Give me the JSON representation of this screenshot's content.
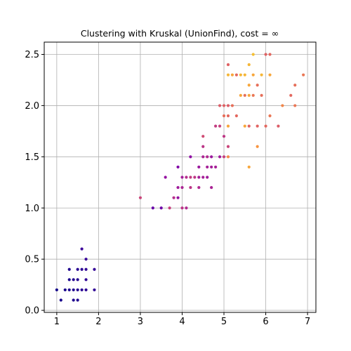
{
  "chart_data": {
    "type": "scatter",
    "title": "Clustering with Kruskal (UnionFind), cost = ∞",
    "xlabel": "",
    "ylabel": "",
    "xlim": [
      0.7,
      7.2
    ],
    "ylim": [
      -0.02,
      2.62
    ],
    "xticks": [
      1,
      2,
      3,
      4,
      5,
      6,
      7
    ],
    "yticks": [
      0.0,
      0.5,
      1.0,
      1.5,
      2.0,
      2.5
    ],
    "ytick_labels": [
      "0.0",
      "0.5",
      "1.0",
      "1.5",
      "2.0",
      "2.5"
    ],
    "grid": true,
    "colormap": "plasma",
    "points": [
      {
        "x": 1.0,
        "y": 0.2,
        "c": 0.02
      },
      {
        "x": 1.1,
        "y": 0.1,
        "c": 0.03
      },
      {
        "x": 1.2,
        "y": 0.2,
        "c": 0.03
      },
      {
        "x": 1.3,
        "y": 0.2,
        "c": 0.04
      },
      {
        "x": 1.3,
        "y": 0.3,
        "c": 0.04
      },
      {
        "x": 1.3,
        "y": 0.4,
        "c": 0.05
      },
      {
        "x": 1.4,
        "y": 0.1,
        "c": 0.05
      },
      {
        "x": 1.4,
        "y": 0.2,
        "c": 0.05
      },
      {
        "x": 1.4,
        "y": 0.3,
        "c": 0.06
      },
      {
        "x": 1.5,
        "y": 0.1,
        "c": 0.05
      },
      {
        "x": 1.5,
        "y": 0.2,
        "c": 0.06
      },
      {
        "x": 1.5,
        "y": 0.3,
        "c": 0.06
      },
      {
        "x": 1.5,
        "y": 0.4,
        "c": 0.07
      },
      {
        "x": 1.6,
        "y": 0.2,
        "c": 0.07
      },
      {
        "x": 1.6,
        "y": 0.4,
        "c": 0.08
      },
      {
        "x": 1.6,
        "y": 0.6,
        "c": 0.12
      },
      {
        "x": 1.7,
        "y": 0.2,
        "c": 0.08
      },
      {
        "x": 1.7,
        "y": 0.3,
        "c": 0.09
      },
      {
        "x": 1.7,
        "y": 0.4,
        "c": 0.09
      },
      {
        "x": 1.7,
        "y": 0.5,
        "c": 0.11
      },
      {
        "x": 1.9,
        "y": 0.2,
        "c": 0.09
      },
      {
        "x": 1.9,
        "y": 0.4,
        "c": 0.1
      },
      {
        "x": 3.0,
        "y": 1.1,
        "c": 0.62
      },
      {
        "x": 3.3,
        "y": 1.0,
        "c": 0.24
      },
      {
        "x": 3.5,
        "y": 1.0,
        "c": 0.26
      },
      {
        "x": 3.6,
        "y": 1.3,
        "c": 0.4
      },
      {
        "x": 3.7,
        "y": 1.0,
        "c": 0.6
      },
      {
        "x": 3.8,
        "y": 1.1,
        "c": 0.52
      },
      {
        "x": 3.9,
        "y": 1.1,
        "c": 0.4
      },
      {
        "x": 3.9,
        "y": 1.2,
        "c": 0.44
      },
      {
        "x": 3.9,
        "y": 1.4,
        "c": 0.33
      },
      {
        "x": 4.0,
        "y": 1.0,
        "c": 0.55
      },
      {
        "x": 4.0,
        "y": 1.2,
        "c": 0.48
      },
      {
        "x": 4.0,
        "y": 1.3,
        "c": 0.45
      },
      {
        "x": 4.1,
        "y": 1.0,
        "c": 0.5
      },
      {
        "x": 4.1,
        "y": 1.3,
        "c": 0.52
      },
      {
        "x": 4.2,
        "y": 1.2,
        "c": 0.55
      },
      {
        "x": 4.2,
        "y": 1.3,
        "c": 0.58
      },
      {
        "x": 4.2,
        "y": 1.5,
        "c": 0.38
      },
      {
        "x": 4.3,
        "y": 1.3,
        "c": 0.56
      },
      {
        "x": 4.4,
        "y": 1.2,
        "c": 0.5
      },
      {
        "x": 4.4,
        "y": 1.3,
        "c": 0.45
      },
      {
        "x": 4.4,
        "y": 1.4,
        "c": 0.42
      },
      {
        "x": 4.5,
        "y": 1.3,
        "c": 0.46
      },
      {
        "x": 4.5,
        "y": 1.5,
        "c": 0.48
      },
      {
        "x": 4.5,
        "y": 1.6,
        "c": 0.55
      },
      {
        "x": 4.5,
        "y": 1.7,
        "c": 0.65
      },
      {
        "x": 4.6,
        "y": 1.3,
        "c": 0.44
      },
      {
        "x": 4.6,
        "y": 1.4,
        "c": 0.46
      },
      {
        "x": 4.6,
        "y": 1.5,
        "c": 0.5
      },
      {
        "x": 4.7,
        "y": 1.2,
        "c": 0.47
      },
      {
        "x": 4.7,
        "y": 1.4,
        "c": 0.45
      },
      {
        "x": 4.7,
        "y": 1.5,
        "c": 0.42
      },
      {
        "x": 4.8,
        "y": 1.4,
        "c": 0.46
      },
      {
        "x": 4.8,
        "y": 1.8,
        "c": 0.58
      },
      {
        "x": 4.9,
        "y": 1.5,
        "c": 0.44
      },
      {
        "x": 4.9,
        "y": 1.8,
        "c": 0.6
      },
      {
        "x": 4.9,
        "y": 2.0,
        "c": 0.72
      },
      {
        "x": 5.0,
        "y": 1.5,
        "c": 0.6
      },
      {
        "x": 5.0,
        "y": 1.7,
        "c": 0.56
      },
      {
        "x": 5.0,
        "y": 1.9,
        "c": 0.78
      },
      {
        "x": 5.0,
        "y": 2.0,
        "c": 0.74
      },
      {
        "x": 5.1,
        "y": 1.5,
        "c": 0.85
      },
      {
        "x": 5.1,
        "y": 1.6,
        "c": 0.62
      },
      {
        "x": 5.1,
        "y": 1.8,
        "c": 0.9
      },
      {
        "x": 5.1,
        "y": 1.9,
        "c": 0.76
      },
      {
        "x": 5.1,
        "y": 2.0,
        "c": 0.72
      },
      {
        "x": 5.1,
        "y": 2.3,
        "c": 0.92
      },
      {
        "x": 5.1,
        "y": 2.4,
        "c": 0.74
      },
      {
        "x": 5.2,
        "y": 2.0,
        "c": 0.78
      },
      {
        "x": 5.2,
        "y": 2.3,
        "c": 0.9
      },
      {
        "x": 5.3,
        "y": 1.9,
        "c": 0.76
      },
      {
        "x": 5.3,
        "y": 2.3,
        "c": 0.76
      },
      {
        "x": 5.4,
        "y": 2.1,
        "c": 0.9
      },
      {
        "x": 5.4,
        "y": 2.3,
        "c": 0.92
      },
      {
        "x": 5.5,
        "y": 1.8,
        "c": 0.9
      },
      {
        "x": 5.5,
        "y": 2.1,
        "c": 0.78
      },
      {
        "x": 5.5,
        "y": 2.3,
        "c": 0.92
      },
      {
        "x": 5.6,
        "y": 1.4,
        "c": 0.9
      },
      {
        "x": 5.6,
        "y": 1.8,
        "c": 0.75
      },
      {
        "x": 5.6,
        "y": 2.1,
        "c": 0.9
      },
      {
        "x": 5.6,
        "y": 2.2,
        "c": 0.9
      },
      {
        "x": 5.6,
        "y": 2.4,
        "c": 0.92
      },
      {
        "x": 5.7,
        "y": 2.1,
        "c": 0.8
      },
      {
        "x": 5.7,
        "y": 2.3,
        "c": 0.9
      },
      {
        "x": 5.7,
        "y": 2.5,
        "c": 0.93
      },
      {
        "x": 5.8,
        "y": 1.6,
        "c": 0.88
      },
      {
        "x": 5.8,
        "y": 1.8,
        "c": 0.75
      },
      {
        "x": 5.8,
        "y": 2.2,
        "c": 0.78
      },
      {
        "x": 5.9,
        "y": 2.1,
        "c": 0.78
      },
      {
        "x": 5.9,
        "y": 2.3,
        "c": 0.92
      },
      {
        "x": 6.0,
        "y": 1.8,
        "c": 0.76
      },
      {
        "x": 6.0,
        "y": 2.5,
        "c": 0.74
      },
      {
        "x": 6.1,
        "y": 1.9,
        "c": 0.8
      },
      {
        "x": 6.1,
        "y": 2.3,
        "c": 0.9
      },
      {
        "x": 6.1,
        "y": 2.5,
        "c": 0.76
      },
      {
        "x": 6.3,
        "y": 1.8,
        "c": 0.72
      },
      {
        "x": 6.4,
        "y": 2.0,
        "c": 0.84
      },
      {
        "x": 6.6,
        "y": 2.1,
        "c": 0.76
      },
      {
        "x": 6.7,
        "y": 2.0,
        "c": 0.8
      },
      {
        "x": 6.7,
        "y": 2.2,
        "c": 0.78
      },
      {
        "x": 6.9,
        "y": 2.3,
        "c": 0.8
      }
    ]
  }
}
